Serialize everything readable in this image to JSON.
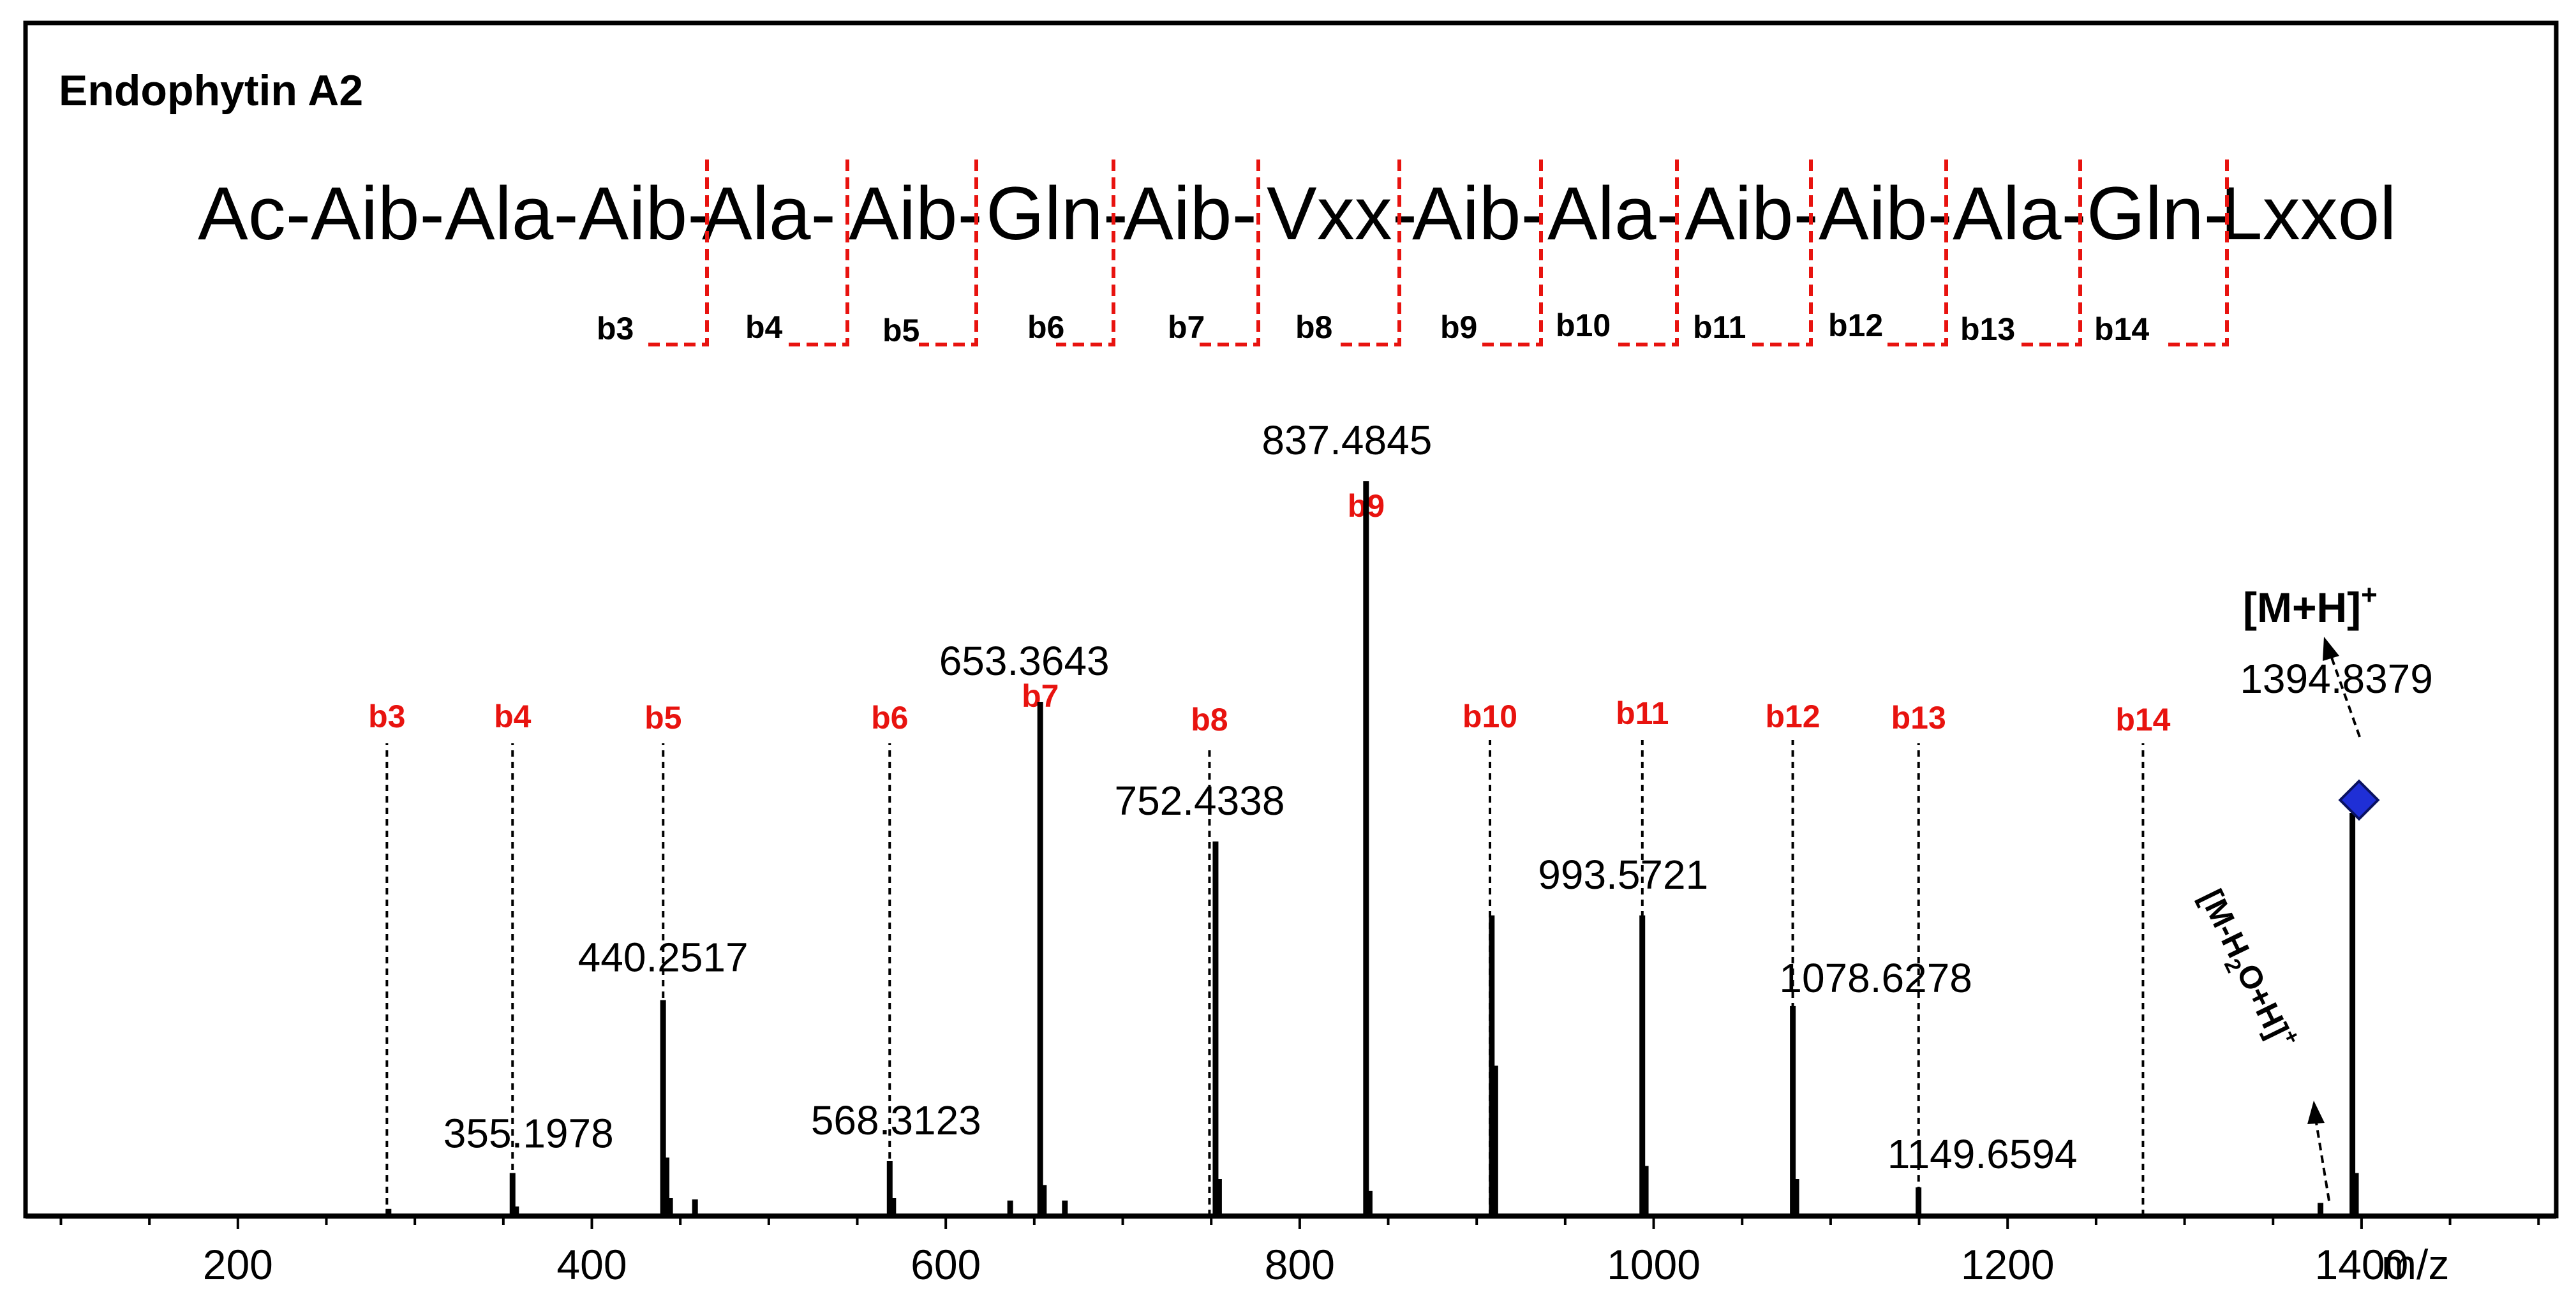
{
  "chart_data": {
    "type": "bar",
    "title": "Endophytin A2",
    "sequence": [
      "Ac-Aib-Ala-Aib-",
      "Ala-",
      "Aib-",
      "Gln-",
      "Aib-",
      "Vxx-",
      "Aib-",
      "Ala-",
      "Aib-",
      "Aib-",
      "Ala-",
      "Gln-",
      "Lxxol"
    ],
    "fragments": [
      "b3",
      "b4",
      "b5",
      "b6",
      "b7",
      "b8",
      "b9",
      "b10",
      "b11",
      "b12",
      "b13",
      "b14"
    ],
    "xlabel": "m/z",
    "ylabel": "",
    "xlim": [
      80,
      1510
    ],
    "ylim": [
      0,
      100
    ],
    "x_ticks": [
      200,
      400,
      600,
      800,
      1000,
      1200,
      1400
    ],
    "colors": {
      "fragment": "#e8130f",
      "peak": "#000000",
      "precursor_marker": "#1f2fd6"
    },
    "series": [
      {
        "values": [
          {
            "x": 285.1,
            "y": 0.6
          },
          {
            "x": 355.1978,
            "y": 3.6,
            "label": "355.1978"
          },
          {
            "x": 357.2,
            "y": 0.8
          },
          {
            "x": 440.2517,
            "y": 18.1,
            "label": "440.2517"
          },
          {
            "x": 442.2,
            "y": 4.9
          },
          {
            "x": 444.2,
            "y": 1.5
          },
          {
            "x": 458.3,
            "y": 1.4
          },
          {
            "x": 568.3123,
            "y": 4.6,
            "label": "568.3123"
          },
          {
            "x": 570.3,
            "y": 1.5
          },
          {
            "x": 636.4,
            "y": 1.3
          },
          {
            "x": 653.3643,
            "y": 43.1,
            "label": "653.3643"
          },
          {
            "x": 655.4,
            "y": 2.6
          },
          {
            "x": 667.3,
            "y": 1.3
          },
          {
            "x": 752.4338,
            "y": 31.4,
            "label": "752.4338"
          },
          {
            "x": 754.4,
            "y": 3.1
          },
          {
            "x": 837.4845,
            "y": 61.6,
            "label": "837.4845"
          },
          {
            "x": 839.5,
            "y": 2.1
          },
          {
            "x": 908.5,
            "y": 25.2
          },
          {
            "x": 910.5,
            "y": 12.6
          },
          {
            "x": 993.5721,
            "y": 25.2,
            "label": "993.5721"
          },
          {
            "x": 995.5,
            "y": 4.2
          },
          {
            "x": 1078.6278,
            "y": 17.6,
            "label": "1078.6278"
          },
          {
            "x": 1080.6,
            "y": 3.1
          },
          {
            "x": 1149.6594,
            "y": 2.4,
            "label": "1149.6594"
          },
          {
            "x": 1376.8,
            "y": 1.1
          },
          {
            "x": 1394.8379,
            "y": 33.8,
            "label": "1394.8379"
          },
          {
            "x": 1396.8,
            "y": 3.6
          }
        ]
      }
    ],
    "fragment_markers": [
      {
        "label": "b3",
        "x": 284.2
      },
      {
        "label": "b4",
        "x": 355.2
      },
      {
        "label": "b5",
        "x": 440.3
      },
      {
        "label": "b6",
        "x": 568.3
      },
      {
        "label": "b7",
        "x": 653.4
      },
      {
        "label": "b8",
        "x": 749.0
      },
      {
        "label": "b9",
        "x": 837.5
      },
      {
        "label": "b10",
        "x": 907.5
      },
      {
        "label": "b11",
        "x": 993.6
      },
      {
        "label": "b12",
        "x": 1078.6
      },
      {
        "label": "b13",
        "x": 1149.7
      },
      {
        "label": "b14",
        "x": 1276.5
      }
    ],
    "annotations": {
      "precursor": "[M+H]",
      "precursor_superscript": "+",
      "water_loss": [
        "[M-H",
        "2",
        "O+H]",
        "+"
      ]
    }
  }
}
